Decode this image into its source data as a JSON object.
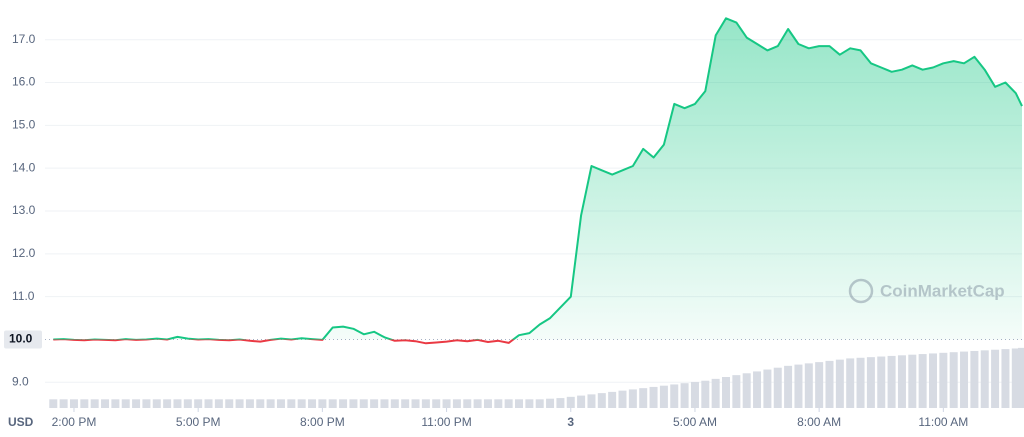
{
  "chart_data": {
    "type": "line",
    "currency_label": "USD",
    "watermark": "CoinMarketCap",
    "up_color": "#16c784",
    "down_color": "#ea3943",
    "volume_color": "#d7dbe3",
    "grid": true,
    "xlim": [
      13.3,
      36.9
    ],
    "ylim": [
      8.4,
      17.6
    ],
    "xticks": [
      {
        "value": 14,
        "label": "2:00 PM"
      },
      {
        "value": 17,
        "label": "5:00 PM"
      },
      {
        "value": 20,
        "label": "8:00 PM"
      },
      {
        "value": 23,
        "label": "11:00 PM"
      },
      {
        "value": 26,
        "label": "3"
      },
      {
        "value": 29,
        "label": "5:00 AM"
      },
      {
        "value": 32,
        "label": "8:00 AM"
      },
      {
        "value": 35,
        "label": "11:00 AM"
      }
    ],
    "yticks": [
      {
        "value": 17,
        "label": "17.0"
      },
      {
        "value": 16,
        "label": "16.0"
      },
      {
        "value": 15,
        "label": "15.0"
      },
      {
        "value": 14,
        "label": "14.0"
      },
      {
        "value": 13,
        "label": "13.0"
      },
      {
        "value": 12,
        "label": "12.0"
      },
      {
        "value": 11,
        "label": "11.0"
      },
      {
        "value": 9,
        "label": "9.0"
      }
    ],
    "baseline": {
      "value": 10,
      "label": "10.0"
    },
    "x": [
      13.5,
      13.75,
      14,
      14.25,
      14.5,
      14.75,
      15,
      15.25,
      15.5,
      15.75,
      16,
      16.25,
      16.5,
      16.75,
      17,
      17.25,
      17.5,
      17.75,
      18,
      18.25,
      18.5,
      18.75,
      19,
      19.25,
      19.5,
      19.75,
      20,
      20.25,
      20.5,
      20.75,
      21,
      21.25,
      21.5,
      21.75,
      22,
      22.25,
      22.5,
      22.75,
      23,
      23.25,
      23.5,
      23.75,
      24,
      24.25,
      24.5,
      24.75,
      25,
      25.25,
      25.5,
      25.75,
      26,
      26.25,
      26.5,
      26.75,
      27,
      27.25,
      27.5,
      27.75,
      28,
      28.25,
      28.5,
      28.75,
      29,
      29.25,
      29.5,
      29.75,
      30,
      30.25,
      30.5,
      30.75,
      31,
      31.25,
      31.5,
      31.75,
      32,
      32.25,
      32.5,
      32.75,
      33,
      33.25,
      33.5,
      33.75,
      34,
      34.25,
      34.5,
      34.75,
      35,
      35.25,
      35.5,
      35.75,
      36,
      36.25,
      36.5,
      36.75,
      36.9
    ],
    "values": [
      10.0,
      10.01,
      9.99,
      9.98,
      10.0,
      9.99,
      9.98,
      10.01,
      9.99,
      10.0,
      10.02,
      10.0,
      10.06,
      10.02,
      10.0,
      10.01,
      9.99,
      9.98,
      10.0,
      9.97,
      9.95,
      9.99,
      10.02,
      10.0,
      10.03,
      10.01,
      9.99,
      10.28,
      10.3,
      10.25,
      10.12,
      10.18,
      10.05,
      9.97,
      9.98,
      9.96,
      9.91,
      9.93,
      9.95,
      9.98,
      9.96,
      9.99,
      9.94,
      9.97,
      9.92,
      10.1,
      10.15,
      10.35,
      10.5,
      10.75,
      11.0,
      12.9,
      14.05,
      13.95,
      13.85,
      13.95,
      14.05,
      14.45,
      14.25,
      14.55,
      15.5,
      15.4,
      15.5,
      15.8,
      17.1,
      17.5,
      17.4,
      17.05,
      16.9,
      16.75,
      16.85,
      17.25,
      16.9,
      16.8,
      16.85,
      16.85,
      16.65,
      16.8,
      16.75,
      16.45,
      16.35,
      16.25,
      16.3,
      16.4,
      16.3,
      16.35,
      16.45,
      16.5,
      16.45,
      16.6,
      16.3,
      15.9,
      16.0,
      15.75,
      15.45
    ],
    "volume_lim": [
      0,
      100
    ],
    "volume": [
      14,
      14,
      14,
      14,
      14,
      14,
      14,
      14,
      14,
      14,
      14,
      14,
      14,
      14,
      14,
      14,
      14,
      14,
      14,
      14,
      14,
      14,
      14,
      14,
      14,
      14,
      14,
      14,
      14,
      14,
      14,
      14,
      14,
      14,
      14,
      14,
      14,
      14,
      14,
      14,
      14,
      14,
      14,
      14,
      14,
      14,
      14,
      14,
      15,
      16,
      18,
      20,
      22,
      24,
      26,
      28,
      30,
      32,
      34,
      36,
      38,
      40,
      42,
      44,
      47,
      50,
      53,
      56,
      59,
      62,
      65,
      68,
      70,
      72,
      74,
      76,
      78,
      80,
      81,
      82,
      83,
      84,
      85,
      86,
      87,
      88,
      89,
      90,
      91,
      92,
      93,
      94,
      95,
      96,
      97
    ]
  }
}
